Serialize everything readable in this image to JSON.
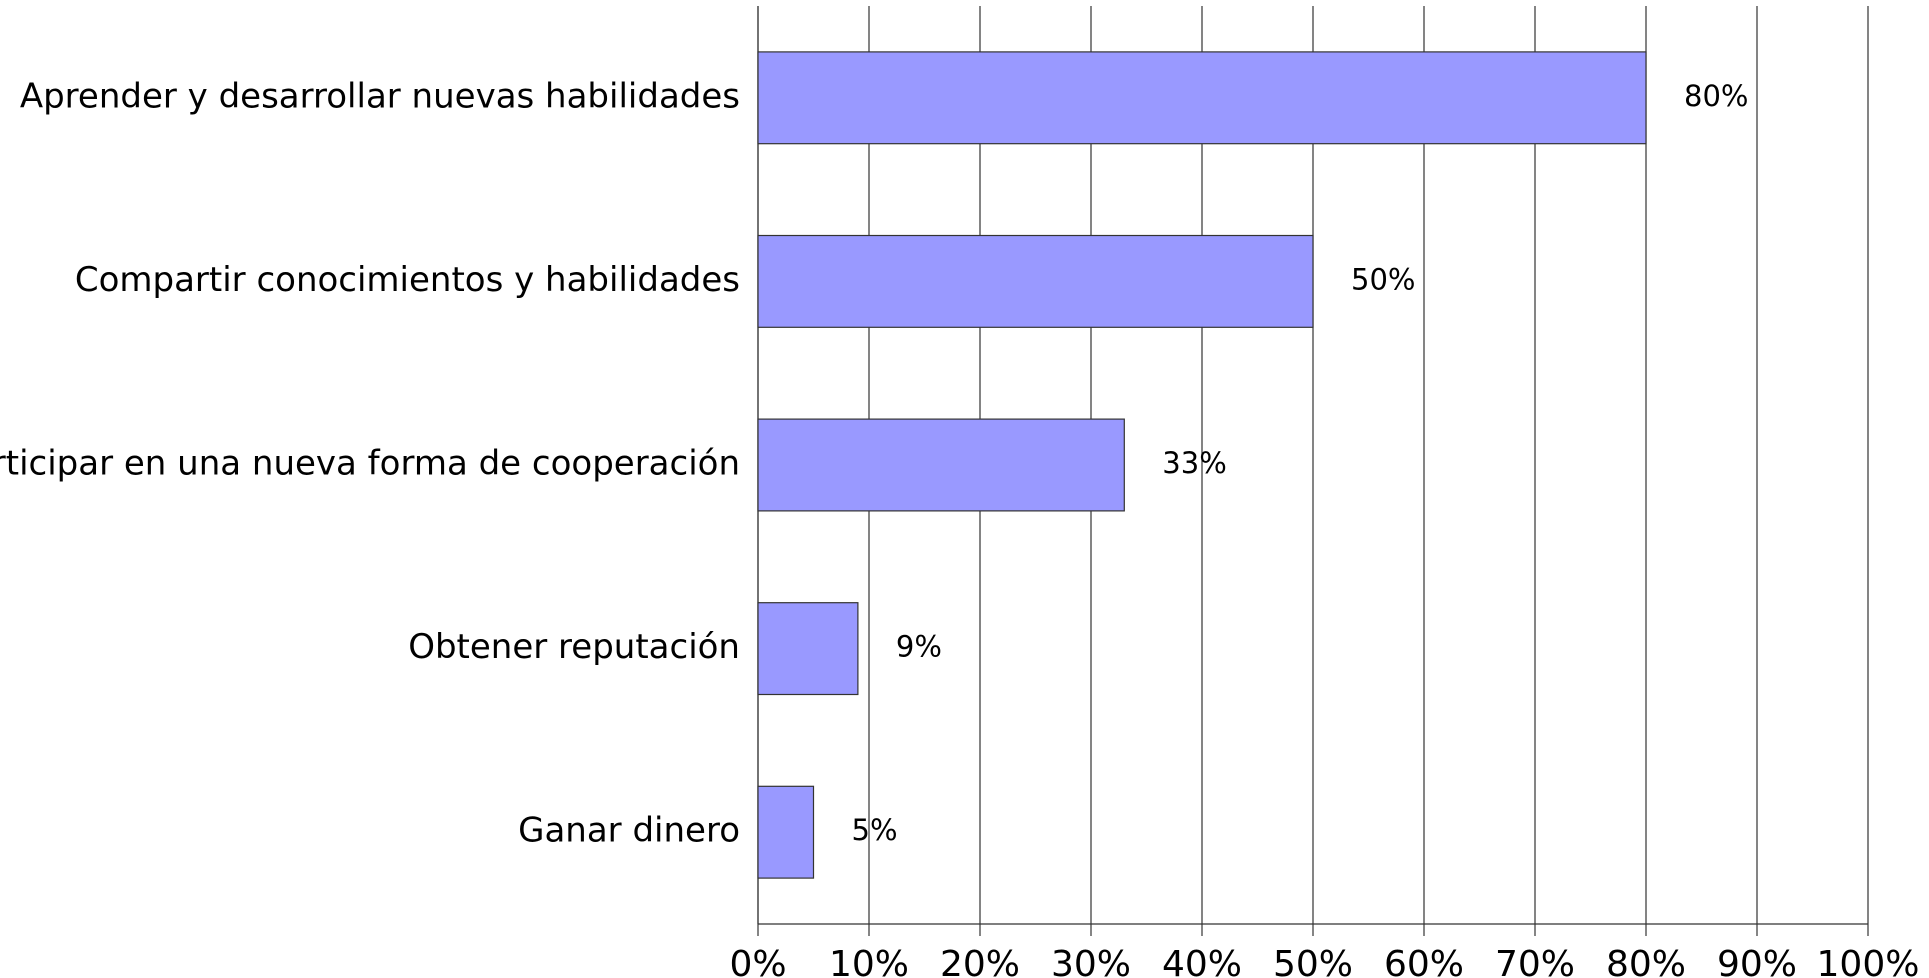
{
  "chart_data": {
    "type": "bar",
    "orientation": "horizontal",
    "categories": [
      "Aprender y desarrollar nuevas habilidades",
      "Compartir conocimientos y habilidades",
      "Participar en una nueva forma de cooperación",
      "Obtener reputación",
      "Ganar dinero"
    ],
    "values": [
      80,
      50,
      33,
      9,
      5
    ],
    "value_labels": [
      "80%",
      "50%",
      "33%",
      "9%",
      "5%"
    ],
    "color": "#9999ff",
    "xlim": [
      0,
      100
    ],
    "xticks": [
      {
        "value": 0,
        "label": "0%"
      },
      {
        "value": 10,
        "label": "10%"
      },
      {
        "value": 20,
        "label": "20%"
      },
      {
        "value": 30,
        "label": "30%"
      },
      {
        "value": 40,
        "label": "40%"
      },
      {
        "value": 50,
        "label": "50%"
      },
      {
        "value": 60,
        "label": "60%"
      },
      {
        "value": 70,
        "label": "70%"
      },
      {
        "value": 80,
        "label": "80%"
      },
      {
        "value": 90,
        "label": "90%"
      },
      {
        "value": 100,
        "label": "100%"
      }
    ],
    "grid": true
  }
}
